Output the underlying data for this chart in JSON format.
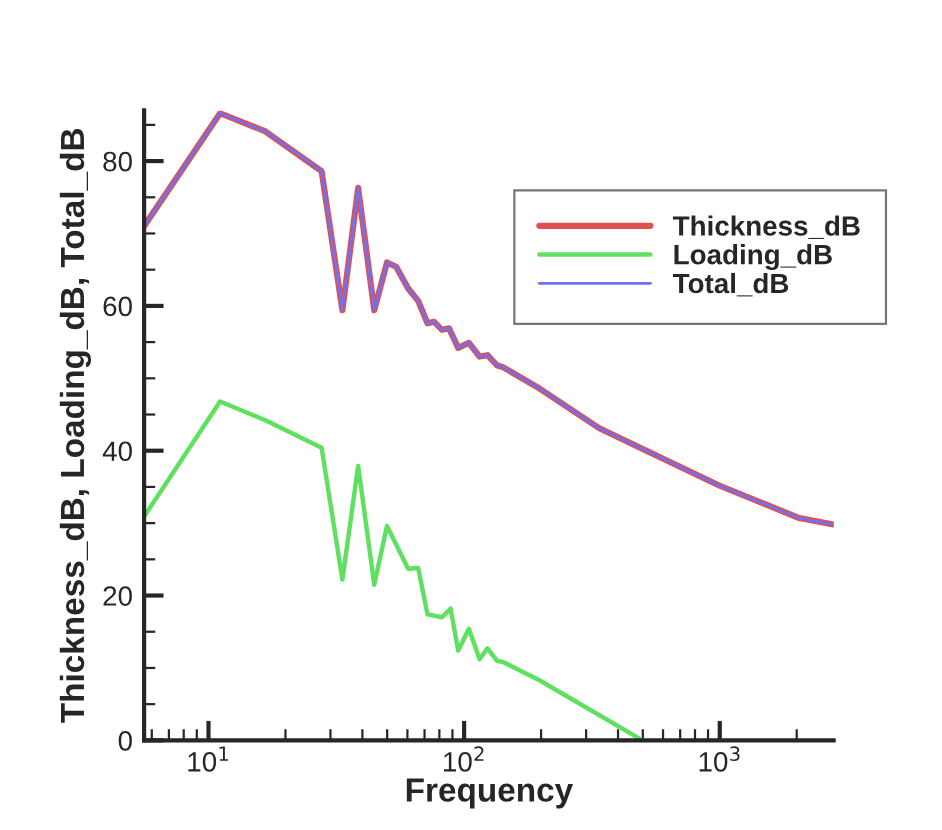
{
  "chart_data": {
    "type": "line",
    "xlabel": "Frequency",
    "ylabel": "Thickness_dB, Loading_dB, Total_dB",
    "log": "x",
    "xlim": [
      5.6,
      2790
    ],
    "xticks": [
      {
        "value": 10,
        "label": "10$^{1}$"
      },
      {
        "value": 100,
        "label": "10$^{2}$"
      },
      {
        "value": 1000,
        "label": "10$^{3}$"
      }
    ],
    "ylim": [
      0,
      87
    ],
    "yticks": [
      0,
      20,
      40,
      60,
      80
    ],
    "grid": false,
    "legend": "top right",
    "series": [
      {
        "name": "Thickness_dB",
        "color": "#e05050",
        "x": [
          5.62,
          11.1,
          16.7,
          27.7,
          33.4,
          38.5,
          44.5,
          49.9,
          54.2,
          60.4,
          66.1,
          71.9,
          76.3,
          82.0,
          87.3,
          94.8,
          104.4,
          114.9,
          123.4,
          134.3,
          142.5,
          197,
          338,
          995,
          2046,
          2786
        ],
        "values": [
          71.1,
          86.6,
          84.1,
          78.6,
          59.4,
          76.3,
          59.4,
          66.0,
          65.4,
          62.4,
          60.7,
          57.6,
          57.8,
          56.7,
          56.9,
          54.2,
          54.9,
          53.0,
          53.2,
          51.8,
          51.5,
          48.6,
          43.1,
          35.2,
          30.7,
          29.8
        ]
      },
      {
        "name": "Loading_dB",
        "color": "#60e060",
        "x": [
          5.62,
          11.1,
          16.7,
          27.7,
          33.4,
          38.5,
          44.5,
          49.9,
          60.4,
          66.1,
          71.9,
          82.0,
          88.5,
          94.8,
          104.4,
          114.9,
          123.4,
          134.3,
          142.5,
          197,
          499
        ],
        "values": [
          31.0,
          46.8,
          44.2,
          40.4,
          22.2,
          37.9,
          21.5,
          29.6,
          23.7,
          23.8,
          17.4,
          17.0,
          18.2,
          12.4,
          15.4,
          11.2,
          12.7,
          11.0,
          10.8,
          8.3,
          0
        ]
      },
      {
        "name": "Total_dB",
        "color": "#7070f0",
        "x": [
          5.62,
          11.1,
          16.7,
          27.7,
          33.4,
          38.5,
          44.5,
          49.9,
          54.2,
          60.4,
          66.1,
          71.9,
          76.3,
          82.0,
          87.3,
          94.8,
          104.4,
          114.9,
          123.4,
          134.3,
          142.5,
          197,
          338,
          995,
          2046,
          2786
        ],
        "values": [
          71.1,
          86.6,
          84.1,
          78.6,
          59.4,
          76.3,
          59.4,
          66.0,
          65.4,
          62.4,
          60.7,
          57.6,
          57.8,
          56.7,
          56.9,
          54.2,
          54.9,
          53.0,
          53.2,
          51.8,
          51.5,
          48.6,
          43.1,
          35.2,
          30.7,
          29.8
        ]
      }
    ]
  }
}
